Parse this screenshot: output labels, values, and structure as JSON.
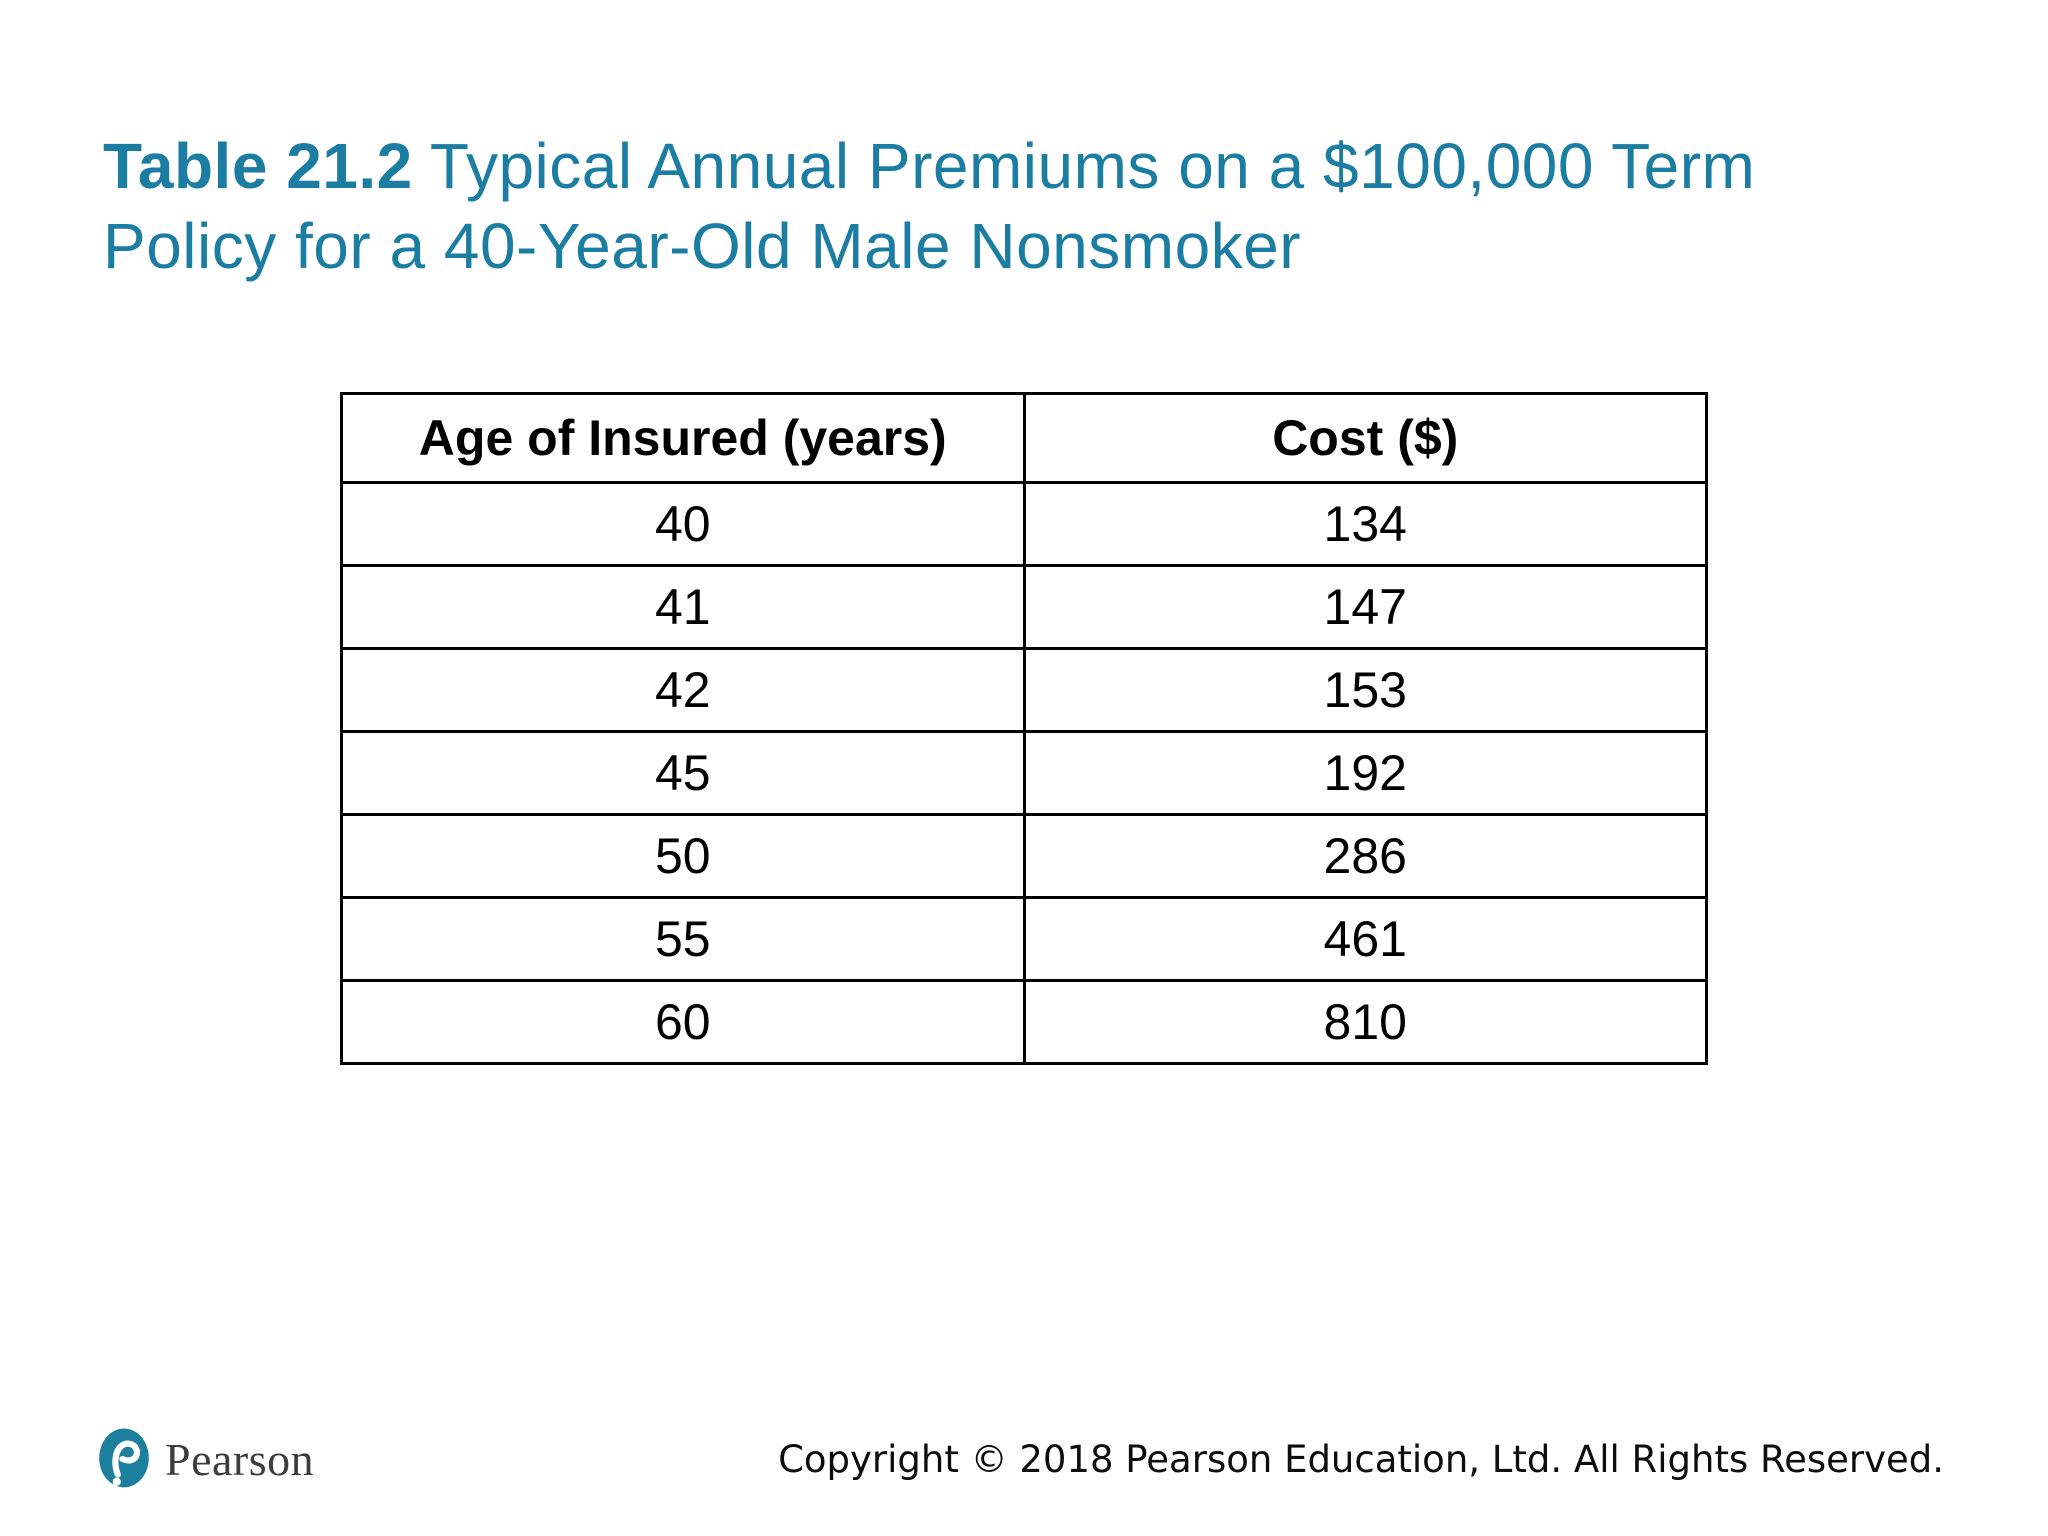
{
  "colors": {
    "title_accent": "#1B7DA2",
    "logo_teal": "#1D7F9E",
    "table_border": "#000000",
    "brand_text": "#3D3D3D"
  },
  "title": {
    "bold": "Table 21.2",
    "line1_rest": "Typical Annual Premiums on a $100,000 Term",
    "line2": "Policy for a 40-Year-Old Male Nonsmoker"
  },
  "table": {
    "columns": [
      "Age of Insured (years)",
      "Cost ($)"
    ],
    "rows": [
      [
        "40",
        "134"
      ],
      [
        "41",
        "147"
      ],
      [
        "42",
        "153"
      ],
      [
        "45",
        "192"
      ],
      [
        "50",
        "286"
      ],
      [
        "55",
        "461"
      ],
      [
        "60",
        "810"
      ]
    ]
  },
  "footer": {
    "brand": "Pearson",
    "copyright": "Copyright © 2018 Pearson Education, Ltd. All Rights Reserved."
  },
  "chart_data": {
    "type": "table",
    "title": "Table 21.2 Typical Annual Premiums on a $100,000 Term Policy for a 40-Year-Old Male Nonsmoker",
    "columns": [
      "Age of Insured (years)",
      "Cost ($)"
    ],
    "x": [
      40,
      41,
      42,
      45,
      50,
      55,
      60
    ],
    "values": [
      134,
      147,
      153,
      192,
      286,
      461,
      810
    ]
  }
}
